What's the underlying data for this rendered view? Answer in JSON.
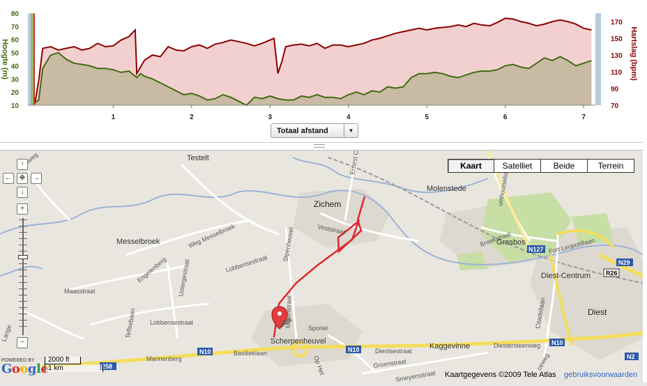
{
  "chart": {
    "left_axis_label": "Hoogte (m)",
    "right_axis_label": "Hartslag (bpm)",
    "left_ticks": [
      "10",
      "20",
      "30",
      "40",
      "50",
      "60",
      "70",
      "80"
    ],
    "right_ticks": [
      "70",
      "90",
      "110",
      "130",
      "150",
      "170"
    ],
    "x_ticks": [
      "1",
      "2",
      "3",
      "4",
      "5",
      "6",
      "7"
    ],
    "elevation_color": "#3f6b10",
    "heart_color": "#8b0000",
    "selector_label": "Totaal afstand"
  },
  "chart_data": {
    "type": "area",
    "xlabel": "",
    "xlim": [
      0,
      7.15
    ],
    "series": [
      {
        "axis": "left",
        "ylim": [
          10,
          80
        ],
        "x": [
          0.0,
          0.05,
          0.1,
          0.2,
          0.3,
          0.4,
          0.5,
          0.6,
          0.7,
          0.8,
          0.9,
          1.0,
          1.1,
          1.2,
          1.3,
          1.35,
          1.4,
          1.5,
          1.6,
          1.7,
          1.8,
          1.9,
          2.0,
          2.1,
          2.2,
          2.3,
          2.4,
          2.5,
          2.6,
          2.7,
          2.8,
          2.9,
          3.0,
          3.1,
          3.2,
          3.3,
          3.4,
          3.5,
          3.6,
          3.7,
          3.8,
          3.9,
          4.0,
          4.1,
          4.2,
          4.3,
          4.4,
          4.5,
          4.6,
          4.7,
          4.8,
          4.9,
          5.0,
          5.1,
          5.2,
          5.3,
          5.4,
          5.5,
          5.6,
          5.7,
          5.8,
          5.9,
          6.0,
          6.1,
          6.2,
          6.3,
          6.4,
          6.5,
          6.6,
          6.7,
          6.8,
          6.9,
          7.0,
          7.1
        ],
        "values": [
          12,
          14,
          38,
          48,
          50,
          45,
          42,
          41,
          40,
          38,
          38,
          37,
          35,
          36,
          31,
          34,
          32,
          30,
          27,
          24,
          21,
          18,
          19,
          17,
          14,
          15,
          18,
          16,
          13,
          10,
          16,
          15,
          17,
          15,
          14,
          14,
          17,
          16,
          18,
          16,
          16,
          15,
          18,
          20,
          18,
          21,
          20,
          24,
          23,
          24,
          31,
          34,
          34,
          35,
          34,
          32,
          31,
          33,
          35,
          36,
          36,
          37,
          40,
          41,
          39,
          38,
          42,
          46,
          44,
          47,
          44,
          40,
          42,
          44
        ]
      },
      {
        "axis": "right",
        "ylim": [
          70,
          180
        ],
        "x": [
          0.0,
          0.05,
          0.1,
          0.2,
          0.3,
          0.4,
          0.5,
          0.6,
          0.7,
          0.8,
          0.9,
          1.0,
          1.1,
          1.2,
          1.28,
          1.3,
          1.35,
          1.4,
          1.5,
          1.6,
          1.7,
          1.8,
          1.9,
          2.0,
          2.1,
          2.2,
          2.3,
          2.4,
          2.5,
          2.6,
          2.7,
          2.8,
          2.9,
          3.0,
          3.05,
          3.1,
          3.15,
          3.2,
          3.3,
          3.4,
          3.5,
          3.6,
          3.7,
          3.8,
          3.9,
          4.0,
          4.1,
          4.2,
          4.3,
          4.4,
          4.5,
          4.6,
          4.7,
          4.8,
          4.9,
          5.0,
          5.1,
          5.2,
          5.3,
          5.4,
          5.5,
          5.6,
          5.7,
          5.8,
          5.9,
          6.0,
          6.1,
          6.2,
          6.3,
          6.4,
          6.5,
          6.6,
          6.7,
          6.8,
          6.9,
          7.0,
          7.1
        ],
        "values": [
          72,
          100,
          138,
          140,
          136,
          138,
          140,
          136,
          138,
          144,
          140,
          141,
          148,
          152,
          160,
          108,
          116,
          124,
          130,
          128,
          140,
          136,
          135,
          140,
          142,
          138,
          143,
          145,
          148,
          146,
          144,
          141,
          144,
          148,
          150,
          108,
          122,
          140,
          142,
          143,
          141,
          144,
          138,
          142,
          142,
          140,
          142,
          144,
          148,
          150,
          153,
          156,
          158,
          160,
          162,
          160,
          162,
          163,
          164,
          166,
          164,
          168,
          166,
          165,
          169,
          174,
          173,
          170,
          168,
          165,
          167,
          170,
          172,
          170,
          167,
          162,
          160
        ]
      }
    ]
  },
  "map": {
    "map_type_buttons": [
      "Kaart",
      "Satelliet",
      "Beide",
      "Terrein"
    ],
    "active_map_type": "Kaart",
    "places": {
      "testelt": "Testelt",
      "zichem": "Zichem",
      "molenstede": "Molenstede",
      "messelbroek": "Messelbroek",
      "grasbos": "Grasbos",
      "diest_centrum": "Diest-Centrum",
      "diest": "Diest",
      "scherpenheuvel": "Scherpenheuvel",
      "fort_leopold": "Fort Leopoldlaan",
      "kaggevinne": "Kaggevinne"
    },
    "streets": {
      "vestestraat": "Veststraat",
      "basiliek": "Basiliekl​aan",
      "diestsestraat": "Diestsestraat",
      "diestersteenweg": "Diestersteenweg",
      "mannenberg": "Mannenberg",
      "maasstraat": "Maasstraat",
      "lobbensestraat": "Lobbensestraat",
      "lobbensestraat2": "Lobbensestraat",
      "engelenberg": "Engelenberg",
      "ustergestraat": "Ustergestraat",
      "weg_messelbroek": "Weg Messelbroek",
      "molenstraat": "Molenstraat",
      "stpenheuvel": "Stpenheuvel",
      "broekstraat": "Broekstraat",
      "sporiel": "Sporiel",
      "groenstraat": "Groenstraat",
      "smeyersstraat": "Smeyersstraat",
      "cstadellaan": "Citadellaan",
      "ernest": "Ernest Clae",
      "teflsebaan": "Teflsebaan",
      "umhoutsebaan": "umhoutsebaan",
      "ophet": "Op Het",
      "ceweg": "ceweg",
      "langeg": "Lange",
      "sunweg": "Sunweg"
    },
    "road_shields": {
      "n10a": "N10",
      "n10b": "N10",
      "n10c": "N10",
      "n127": "N127",
      "n29": "N29",
      "r26": "R26",
      "n2": "N2",
      "n258": "258"
    },
    "scale_ft": "2000 ft",
    "scale_km": "1 km",
    "powered_by": "POWERED BY",
    "copyright": "Kaartgegevens ©2009 Tele Atlas",
    "terms": "gebruiksvoorwaarden",
    "route_color": "#e0262a"
  }
}
